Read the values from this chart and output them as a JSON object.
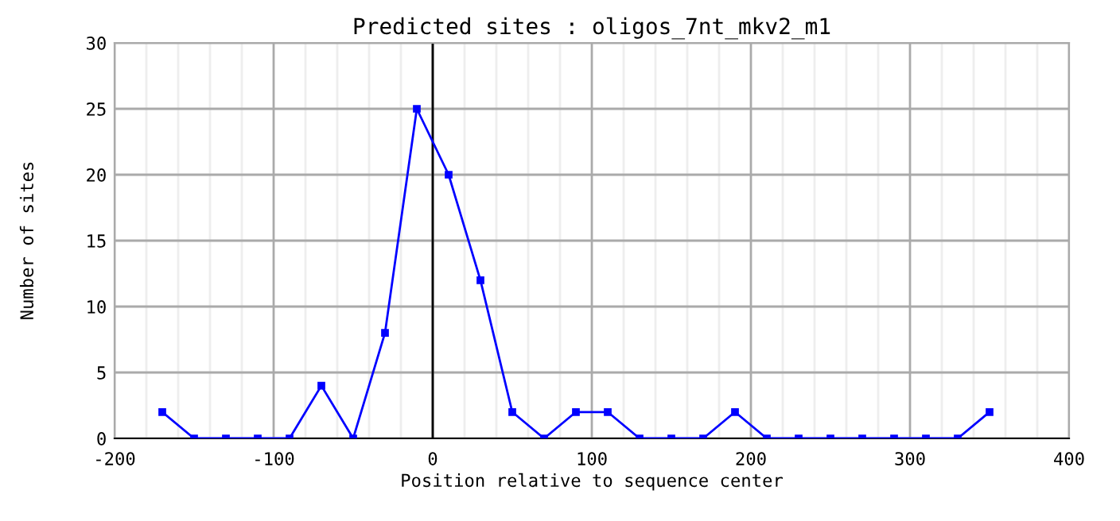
{
  "chart_data": {
    "type": "line",
    "title": "Predicted sites : oligos_7nt_mkv2_m1",
    "xlabel": "Position relative to sequence center",
    "ylabel": "Number of sites",
    "x": [
      -170,
      -150,
      -130,
      -110,
      -90,
      -70,
      -50,
      -30,
      -10,
      10,
      30,
      50,
      70,
      90,
      110,
      130,
      150,
      170,
      190,
      210,
      230,
      250,
      270,
      290,
      310,
      330,
      350
    ],
    "series": [
      {
        "color": "#0000ff",
        "values": [
          2,
          0,
          0,
          0,
          0,
          4,
          0,
          8,
          25,
          20,
          12,
          2,
          0,
          2,
          2,
          0,
          0,
          0,
          2,
          0,
          0,
          0,
          0,
          0,
          0,
          0,
          2
        ]
      }
    ],
    "xlim": [
      -200,
      400
    ],
    "ylim": [
      0,
      30
    ],
    "xticks": [
      -200,
      {
        "value": -180,
        "label": null
      },
      {
        "value": -160,
        "label": null
      },
      {
        "value": -140,
        "label": null
      },
      {
        "value": -120,
        "label": null
      },
      -100,
      {
        "value": -80,
        "label": null
      },
      {
        "value": -60,
        "label": null
      },
      {
        "value": -40,
        "label": null
      },
      {
        "value": -20,
        "label": null
      },
      0,
      {
        "value": 20,
        "label": null
      },
      {
        "value": 40,
        "label": null
      },
      {
        "value": 60,
        "label": null
      },
      {
        "value": 80,
        "label": null
      },
      100,
      {
        "value": 120,
        "label": null
      },
      {
        "value": 140,
        "label": null
      },
      {
        "value": 160,
        "label": null
      },
      {
        "value": 180,
        "label": null
      },
      200,
      {
        "value": 220,
        "label": null
      },
      {
        "value": 240,
        "label": null
      },
      {
        "value": 260,
        "label": null
      },
      {
        "value": 280,
        "label": null
      },
      300,
      {
        "value": 320,
        "label": null
      },
      {
        "value": 340,
        "label": null
      },
      {
        "value": 360,
        "label": null
      },
      {
        "value": 380,
        "label": null
      },
      400
    ],
    "yticks": [
      0,
      5,
      10,
      15,
      20,
      25,
      30
    ],
    "ref_lines": [
      {
        "axis": "x",
        "value": 0,
        "color": "#000000"
      }
    ],
    "grid": true,
    "marker": "square",
    "line_style": "solid",
    "legend": false
  }
}
